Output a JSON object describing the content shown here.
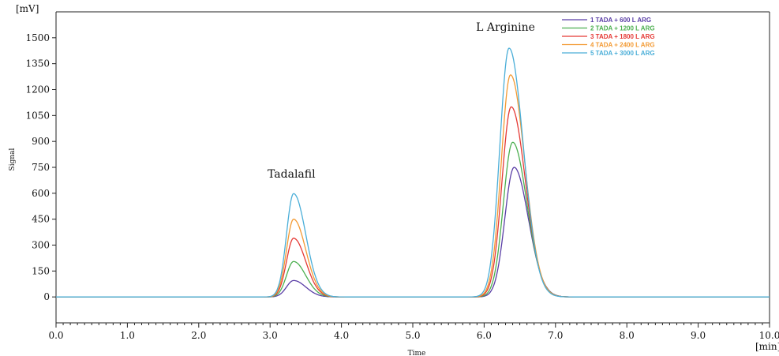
{
  "chart_data": {
    "type": "line",
    "title": "",
    "xlabel": "Time",
    "ylabel": "Signal",
    "x_unit": "[min]",
    "y_unit": "[mV]",
    "xlim": [
      0,
      10
    ],
    "ylim": [
      -150,
      1650
    ],
    "xticks": [
      "0.0",
      "1.0",
      "2.0",
      "3.0",
      "4.0",
      "5.0",
      "6.0",
      "7.0",
      "8.0",
      "9.0",
      "10.0"
    ],
    "yticks": [
      "0",
      "150",
      "300",
      "450",
      "600",
      "750",
      "900",
      "1050",
      "1200",
      "1350",
      "1500"
    ],
    "grid": false,
    "legend_position": "top-right",
    "annotations": [
      {
        "text": "Tadalafil",
        "x": 3.3,
        "y": 690
      },
      {
        "text": "L Arginine",
        "x": 6.3,
        "y": 1540
      }
    ],
    "peaks": {
      "tadalafil": {
        "center": 3.33,
        "sigma_left": 0.1,
        "sigma_right": 0.17
      },
      "arginine": {
        "center": 6.38,
        "sigma_left": 0.13,
        "sigma_right": 0.2
      }
    },
    "series": [
      {
        "name": "1 TADA + 600 L ARG",
        "color": "#5a3ea6",
        "tadalafil_peak": 95,
        "arginine_peak": 750,
        "arginine_center": 6.42
      },
      {
        "name": "2 TADA + 1200 L ARG",
        "color": "#4caf50",
        "tadalafil_peak": 205,
        "arginine_peak": 895,
        "arginine_center": 6.4
      },
      {
        "name": "3 TADA + 1800 L ARG",
        "color": "#e53935",
        "tadalafil_peak": 340,
        "arginine_peak": 1100,
        "arginine_center": 6.38
      },
      {
        "name": "4 TADA + 2400 L ARG",
        "color": "#f39a33",
        "tadalafil_peak": 450,
        "arginine_peak": 1285,
        "arginine_center": 6.37
      },
      {
        "name": "5 TADA + 3000 L ARG",
        "color": "#4aaed8",
        "tadalafil_peak": 598,
        "arginine_peak": 1440,
        "arginine_center": 6.35
      }
    ]
  }
}
